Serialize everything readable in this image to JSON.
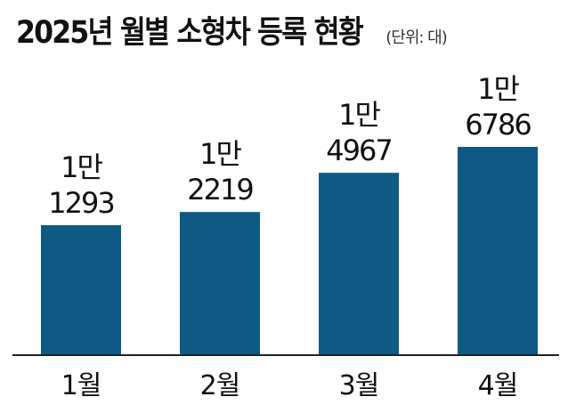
{
  "title": "2025년 월별 소형차 등록 현황",
  "unit": "(단위: 대)",
  "chart_data": {
    "type": "bar",
    "title": "2025년 월별 소형차 등록 현황",
    "unit": "(단위: 대)",
    "categories": [
      "1월",
      "2월",
      "3월",
      "4월"
    ],
    "values": [
      11293,
      12219,
      14967,
      16786
    ],
    "value_labels": [
      [
        "1만",
        "1293"
      ],
      [
        "1만",
        "2219"
      ],
      [
        "1만",
        "4967"
      ],
      [
        "1만",
        "6786"
      ]
    ],
    "xlabel": "",
    "ylabel": "",
    "grid": false,
    "bar_color": "#0d5b82"
  }
}
